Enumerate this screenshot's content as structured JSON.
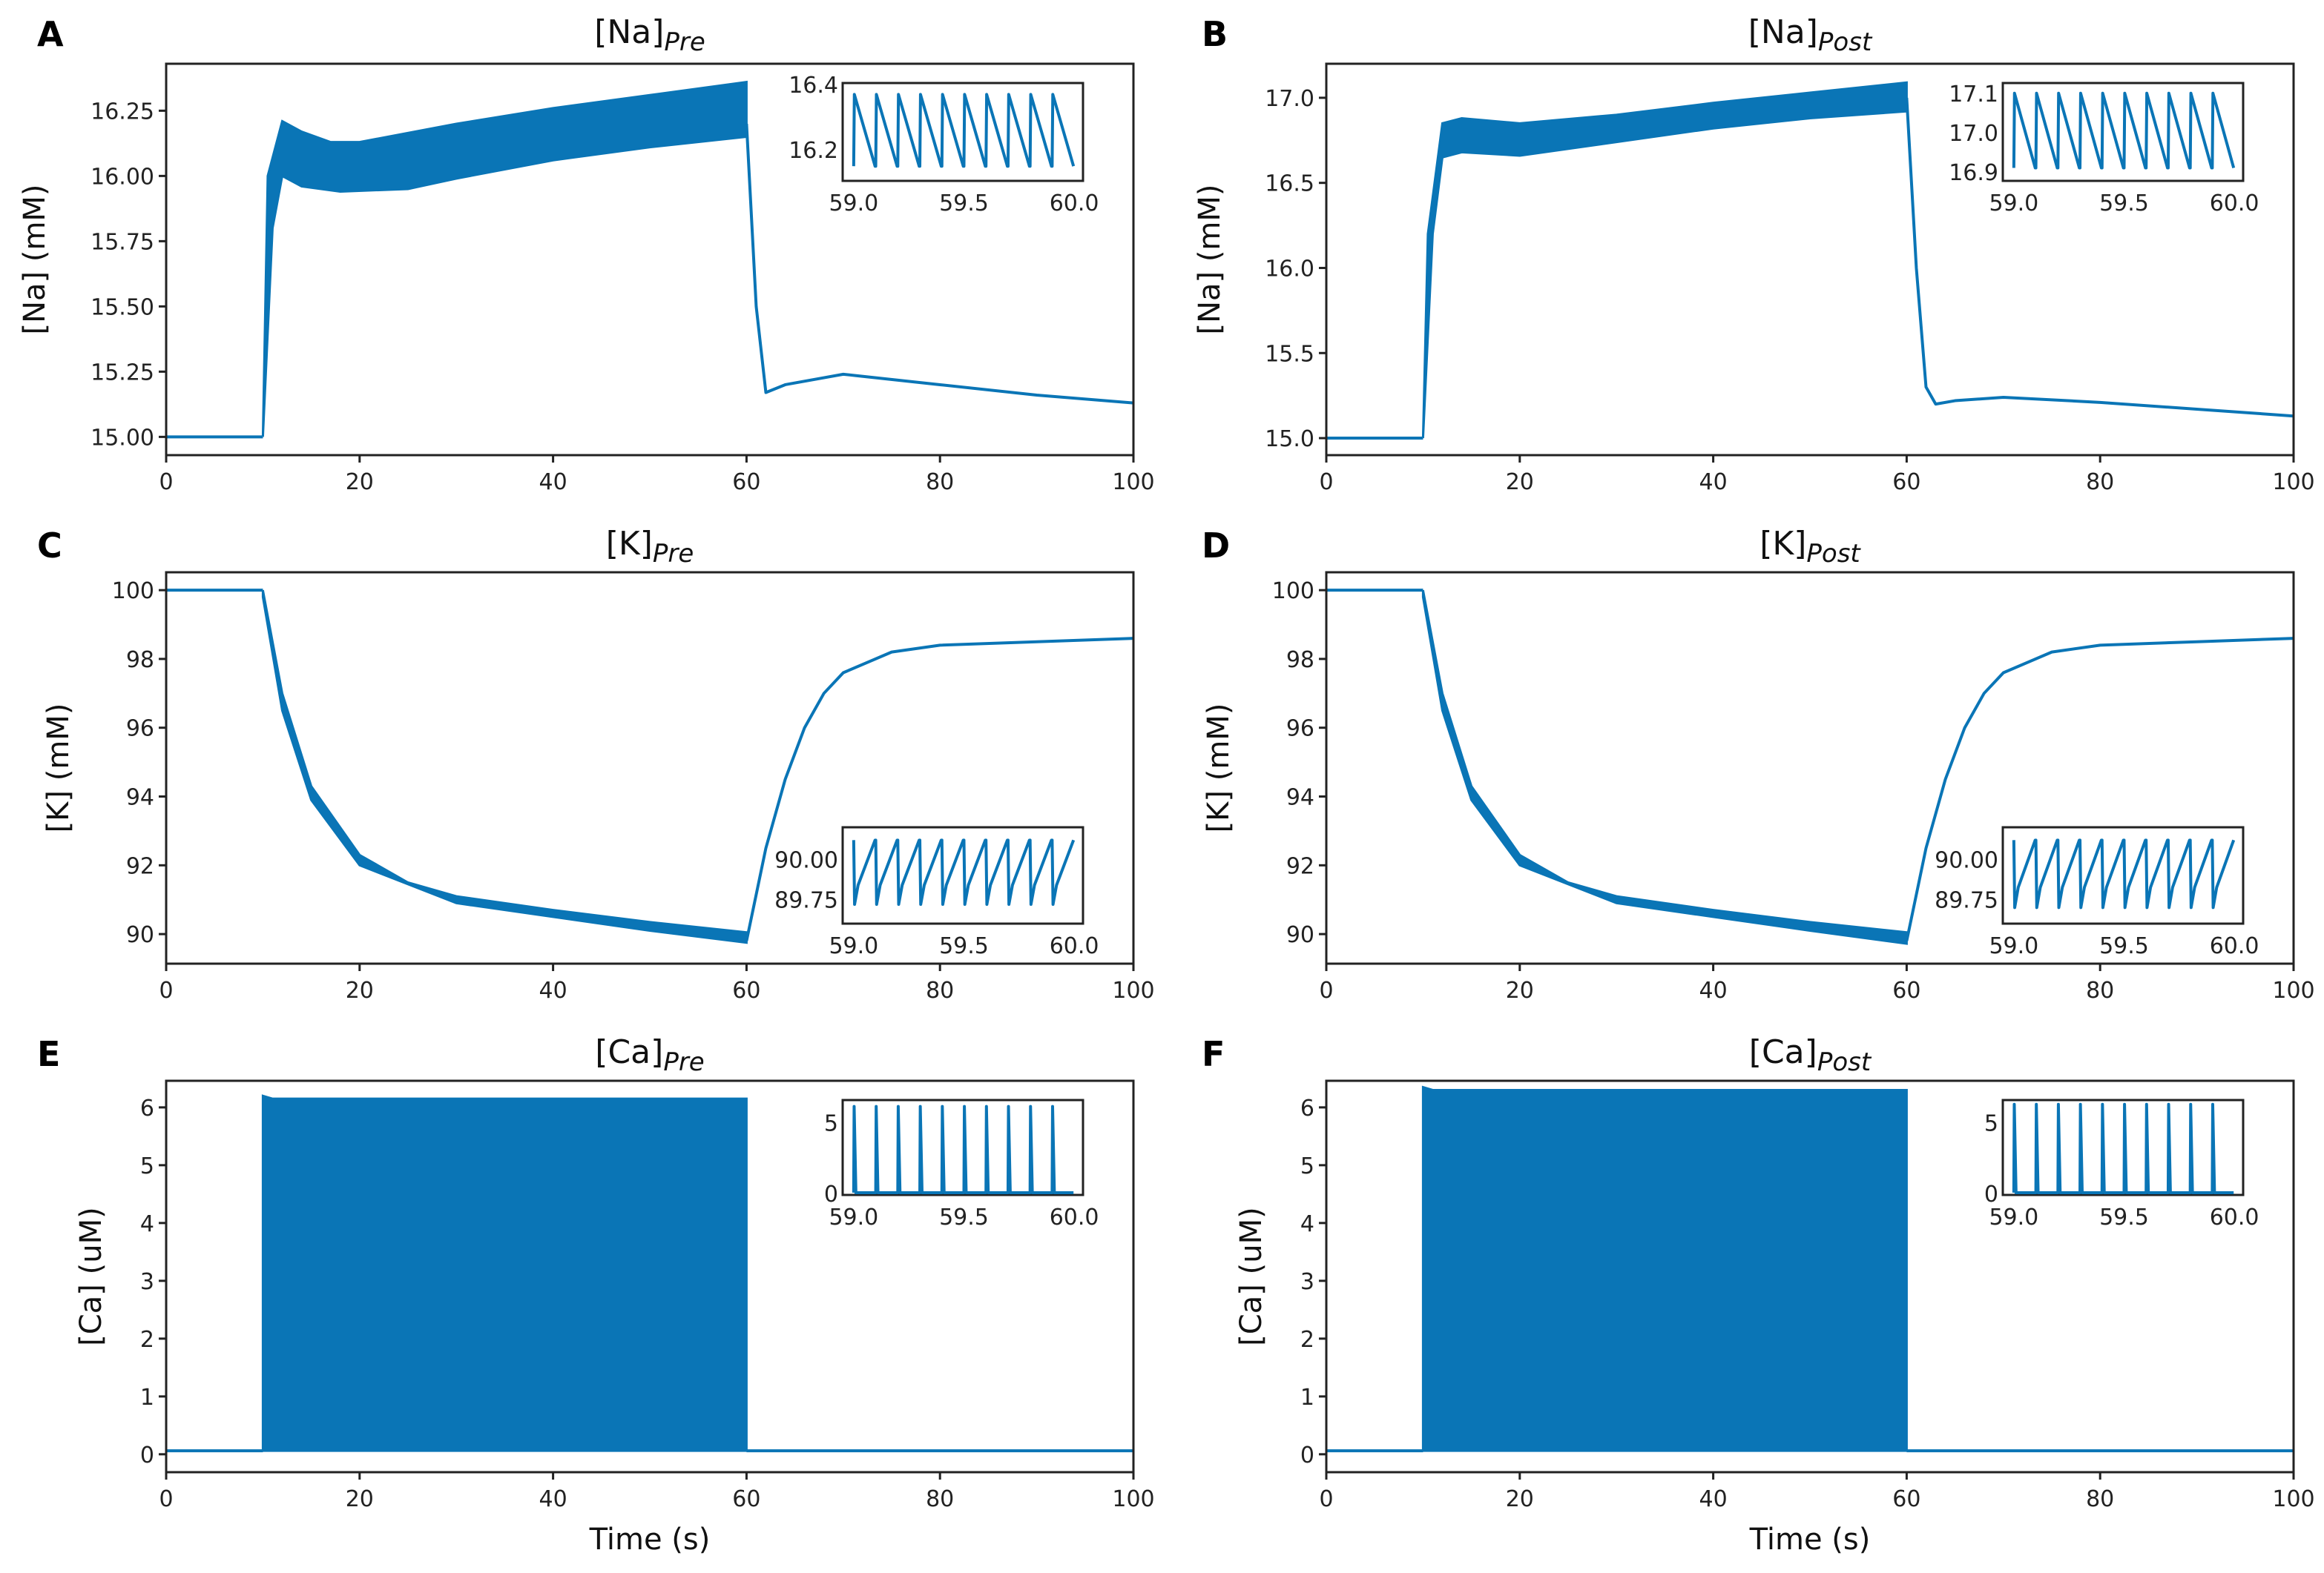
{
  "chart_data": [
    {
      "type": "line",
      "letter": "A",
      "title": "[Na]",
      "title_sub": "Pre",
      "ylabel": "[Na] (mM)",
      "xlabel": "",
      "xlim": [
        0,
        100
      ],
      "xticks": [
        "0",
        "20",
        "40",
        "60",
        "80",
        "100"
      ],
      "ylim": [
        14.93,
        16.43
      ],
      "yticks": [
        "15.00",
        "15.25",
        "15.50",
        "15.75",
        "16.00",
        "16.25"
      ],
      "baseline": 15.0,
      "band_upper": [
        [
          10,
          15.0
        ],
        [
          10.5,
          16.0
        ],
        [
          12,
          16.21
        ],
        [
          14,
          16.17
        ],
        [
          17,
          16.13
        ],
        [
          20,
          16.13
        ],
        [
          30,
          16.2
        ],
        [
          40,
          16.26
        ],
        [
          50,
          16.31
        ],
        [
          60,
          16.36
        ]
      ],
      "band_lower": [
        [
          10,
          15.0
        ],
        [
          11,
          15.8
        ],
        [
          12,
          16.0
        ],
        [
          14,
          15.96
        ],
        [
          18,
          15.94
        ],
        [
          25,
          15.95
        ],
        [
          30,
          15.99
        ],
        [
          40,
          16.06
        ],
        [
          50,
          16.11
        ],
        [
          60,
          16.15
        ]
      ],
      "after": [
        [
          60,
          16.2
        ],
        [
          61,
          15.5
        ],
        [
          62,
          15.17
        ],
        [
          64,
          15.2
        ],
        [
          70,
          15.24
        ],
        [
          80,
          15.2
        ],
        [
          90,
          15.16
        ],
        [
          100,
          15.13
        ]
      ],
      "inset": {
        "xlim": [
          58.95,
          60.04
        ],
        "xticks": [
          "59.0",
          "59.5",
          "60.0"
        ],
        "ylim": [
          16.105,
          16.405
        ],
        "yticks": [
          "16.2",
          "16.4"
        ],
        "wave": "up-spike-ramp-down",
        "high": 16.37,
        "low": 16.15,
        "period": 0.1,
        "cycles": 10
      }
    },
    {
      "type": "line",
      "letter": "B",
      "title": "[Na]",
      "title_sub": "Post",
      "ylabel": "[Na] (mM)",
      "xlabel": "",
      "xlim": [
        0,
        100
      ],
      "xticks": [
        "0",
        "20",
        "40",
        "60",
        "80",
        "100"
      ],
      "ylim": [
        14.9,
        17.2
      ],
      "yticks": [
        "15.0",
        "15.5",
        "16.0",
        "16.5",
        "17.0"
      ],
      "baseline": 15.0,
      "band_upper": [
        [
          10,
          15.0
        ],
        [
          10.5,
          16.2
        ],
        [
          12,
          16.85
        ],
        [
          14,
          16.88
        ],
        [
          20,
          16.85
        ],
        [
          30,
          16.9
        ],
        [
          40,
          16.97
        ],
        [
          50,
          17.03
        ],
        [
          60,
          17.09
        ]
      ],
      "band_lower": [
        [
          10,
          15.0
        ],
        [
          11,
          16.2
        ],
        [
          12,
          16.65
        ],
        [
          14,
          16.68
        ],
        [
          20,
          16.66
        ],
        [
          30,
          16.74
        ],
        [
          40,
          16.82
        ],
        [
          50,
          16.88
        ],
        [
          60,
          16.92
        ]
      ],
      "after": [
        [
          60,
          17.0
        ],
        [
          61,
          16.0
        ],
        [
          62,
          15.3
        ],
        [
          63,
          15.2
        ],
        [
          65,
          15.22
        ],
        [
          70,
          15.24
        ],
        [
          80,
          15.21
        ],
        [
          90,
          15.17
        ],
        [
          100,
          15.13
        ]
      ],
      "inset": {
        "xlim": [
          58.95,
          60.04
        ],
        "xticks": [
          "59.0",
          "59.5",
          "60.0"
        ],
        "ylim": [
          16.877,
          17.126
        ],
        "yticks": [
          "16.9",
          "17.0",
          "17.1"
        ],
        "wave": "up-spike-ramp-down",
        "high": 17.1,
        "low": 16.91,
        "period": 0.1,
        "cycles": 10
      }
    },
    {
      "type": "line",
      "letter": "C",
      "title": "[K]",
      "title_sub": "Pre",
      "ylabel": "[K] (mM)",
      "xlabel": "",
      "xlim": [
        0,
        100
      ],
      "xticks": [
        "0",
        "20",
        "40",
        "60",
        "80",
        "100"
      ],
      "ylim": [
        89.14,
        100.52
      ],
      "yticks": [
        "90",
        "92",
        "94",
        "96",
        "98",
        "100"
      ],
      "baseline": 100,
      "band_upper": [
        [
          10,
          100
        ],
        [
          12,
          97
        ],
        [
          15,
          94.3
        ],
        [
          20,
          92.3
        ],
        [
          25,
          91.5
        ],
        [
          30,
          91.1
        ],
        [
          40,
          90.7
        ],
        [
          50,
          90.35
        ],
        [
          60,
          90.05
        ]
      ],
      "band_lower": [
        [
          10,
          99.8
        ],
        [
          12,
          96.5
        ],
        [
          15,
          93.9
        ],
        [
          20,
          92.0
        ],
        [
          30,
          90.9
        ],
        [
          40,
          90.5
        ],
        [
          50,
          90.1
        ],
        [
          60,
          89.75
        ]
      ],
      "after": [
        [
          60,
          89.8
        ],
        [
          62,
          92.5
        ],
        [
          64,
          94.5
        ],
        [
          66,
          96
        ],
        [
          68,
          97
        ],
        [
          70,
          97.6
        ],
        [
          75,
          98.2
        ],
        [
          80,
          98.4
        ],
        [
          90,
          98.5
        ],
        [
          100,
          98.6
        ]
      ],
      "inset": {
        "xlim": [
          58.95,
          60.04
        ],
        "xticks": [
          "59.0",
          "59.5",
          "60.0"
        ],
        "ylim": [
          89.6,
          90.2
        ],
        "yticks": [
          "89.75",
          "90.00"
        ],
        "wave": "down-spike-ramp-up",
        "high": 90.12,
        "low": 89.72,
        "period": 0.1,
        "cycles": 10
      }
    },
    {
      "type": "line",
      "letter": "D",
      "title": "[K]",
      "title_sub": "Post",
      "ylabel": "[K] (mM)",
      "xlabel": "",
      "xlim": [
        0,
        100
      ],
      "xticks": [
        "0",
        "20",
        "40",
        "60",
        "80",
        "100"
      ],
      "ylim": [
        89.14,
        100.52
      ],
      "yticks": [
        "90",
        "92",
        "94",
        "96",
        "98",
        "100"
      ],
      "baseline": 100,
      "band_upper": [
        [
          10,
          100
        ],
        [
          12,
          97
        ],
        [
          15,
          94.3
        ],
        [
          20,
          92.3
        ],
        [
          25,
          91.5
        ],
        [
          30,
          91.1
        ],
        [
          40,
          90.7
        ],
        [
          50,
          90.35
        ],
        [
          60,
          90.05
        ]
      ],
      "band_lower": [
        [
          10,
          99.8
        ],
        [
          12,
          96.5
        ],
        [
          15,
          93.9
        ],
        [
          20,
          92.0
        ],
        [
          30,
          90.9
        ],
        [
          40,
          90.5
        ],
        [
          50,
          90.1
        ],
        [
          60,
          89.72
        ]
      ],
      "after": [
        [
          60,
          89.8
        ],
        [
          62,
          92.5
        ],
        [
          64,
          94.5
        ],
        [
          66,
          96
        ],
        [
          68,
          97
        ],
        [
          70,
          97.6
        ],
        [
          75,
          98.2
        ],
        [
          80,
          98.4
        ],
        [
          90,
          98.5
        ],
        [
          100,
          98.6
        ]
      ],
      "inset": {
        "xlim": [
          58.95,
          60.04
        ],
        "xticks": [
          "59.0",
          "59.5",
          "60.0"
        ],
        "ylim": [
          89.6,
          90.2
        ],
        "yticks": [
          "89.75",
          "90.00"
        ],
        "wave": "down-spike-ramp-up",
        "high": 90.12,
        "low": 89.7,
        "period": 0.1,
        "cycles": 10
      }
    },
    {
      "type": "line",
      "letter": "E",
      "title": "[Ca]",
      "title_sub": "Pre",
      "ylabel": "[Ca] (uM)",
      "xlabel": "Time (s)",
      "xlim": [
        0,
        100
      ],
      "xticks": [
        "0",
        "20",
        "40",
        "60",
        "80",
        "100"
      ],
      "ylim": [
        -0.31,
        6.46
      ],
      "yticks": [
        "0",
        "1",
        "2",
        "3",
        "4",
        "5",
        "6"
      ],
      "baseline": 0.06,
      "band_upper": [
        [
          10,
          6.2
        ],
        [
          11,
          6.15
        ],
        [
          60,
          6.15
        ]
      ],
      "band_lower": [
        [
          10,
          0.06
        ],
        [
          60,
          0.06
        ]
      ],
      "after": [
        [
          60,
          0.06
        ],
        [
          100,
          0.06
        ]
      ],
      "inset": {
        "xlim": [
          58.95,
          60.04
        ],
        "xticks": [
          "59.0",
          "59.5",
          "60.0"
        ],
        "ylim": [
          -0.1,
          6.6
        ],
        "yticks": [
          "0",
          "5"
        ],
        "wave": "spike-decay",
        "high": 6.15,
        "low": 0.06,
        "period": 0.1,
        "cycles": 10
      }
    },
    {
      "type": "line",
      "letter": "F",
      "title": "[Ca]",
      "title_sub": "Post",
      "ylabel": "[Ca] (uM)",
      "xlabel": "Time (s)",
      "xlim": [
        0,
        100
      ],
      "xticks": [
        "0",
        "20",
        "40",
        "60",
        "80",
        "100"
      ],
      "ylim": [
        -0.31,
        6.46
      ],
      "yticks": [
        "0",
        "1",
        "2",
        "3",
        "4",
        "5",
        "6"
      ],
      "baseline": 0.06,
      "band_upper": [
        [
          10,
          6.35
        ],
        [
          11,
          6.3
        ],
        [
          60,
          6.3
        ]
      ],
      "band_lower": [
        [
          10,
          0.06
        ],
        [
          60,
          0.06
        ]
      ],
      "after": [
        [
          60,
          0.06
        ],
        [
          100,
          0.06
        ]
      ],
      "inset": {
        "xlim": [
          58.95,
          60.04
        ],
        "xticks": [
          "59.0",
          "59.5",
          "60.0"
        ],
        "ylim": [
          -0.1,
          6.6
        ],
        "yticks": [
          "0",
          "5"
        ],
        "wave": "spike-decay",
        "high": 6.3,
        "low": 0.06,
        "period": 0.1,
        "cycles": 10
      }
    }
  ],
  "colors": {
    "series": "#0a75b6",
    "axes": "#222222"
  }
}
